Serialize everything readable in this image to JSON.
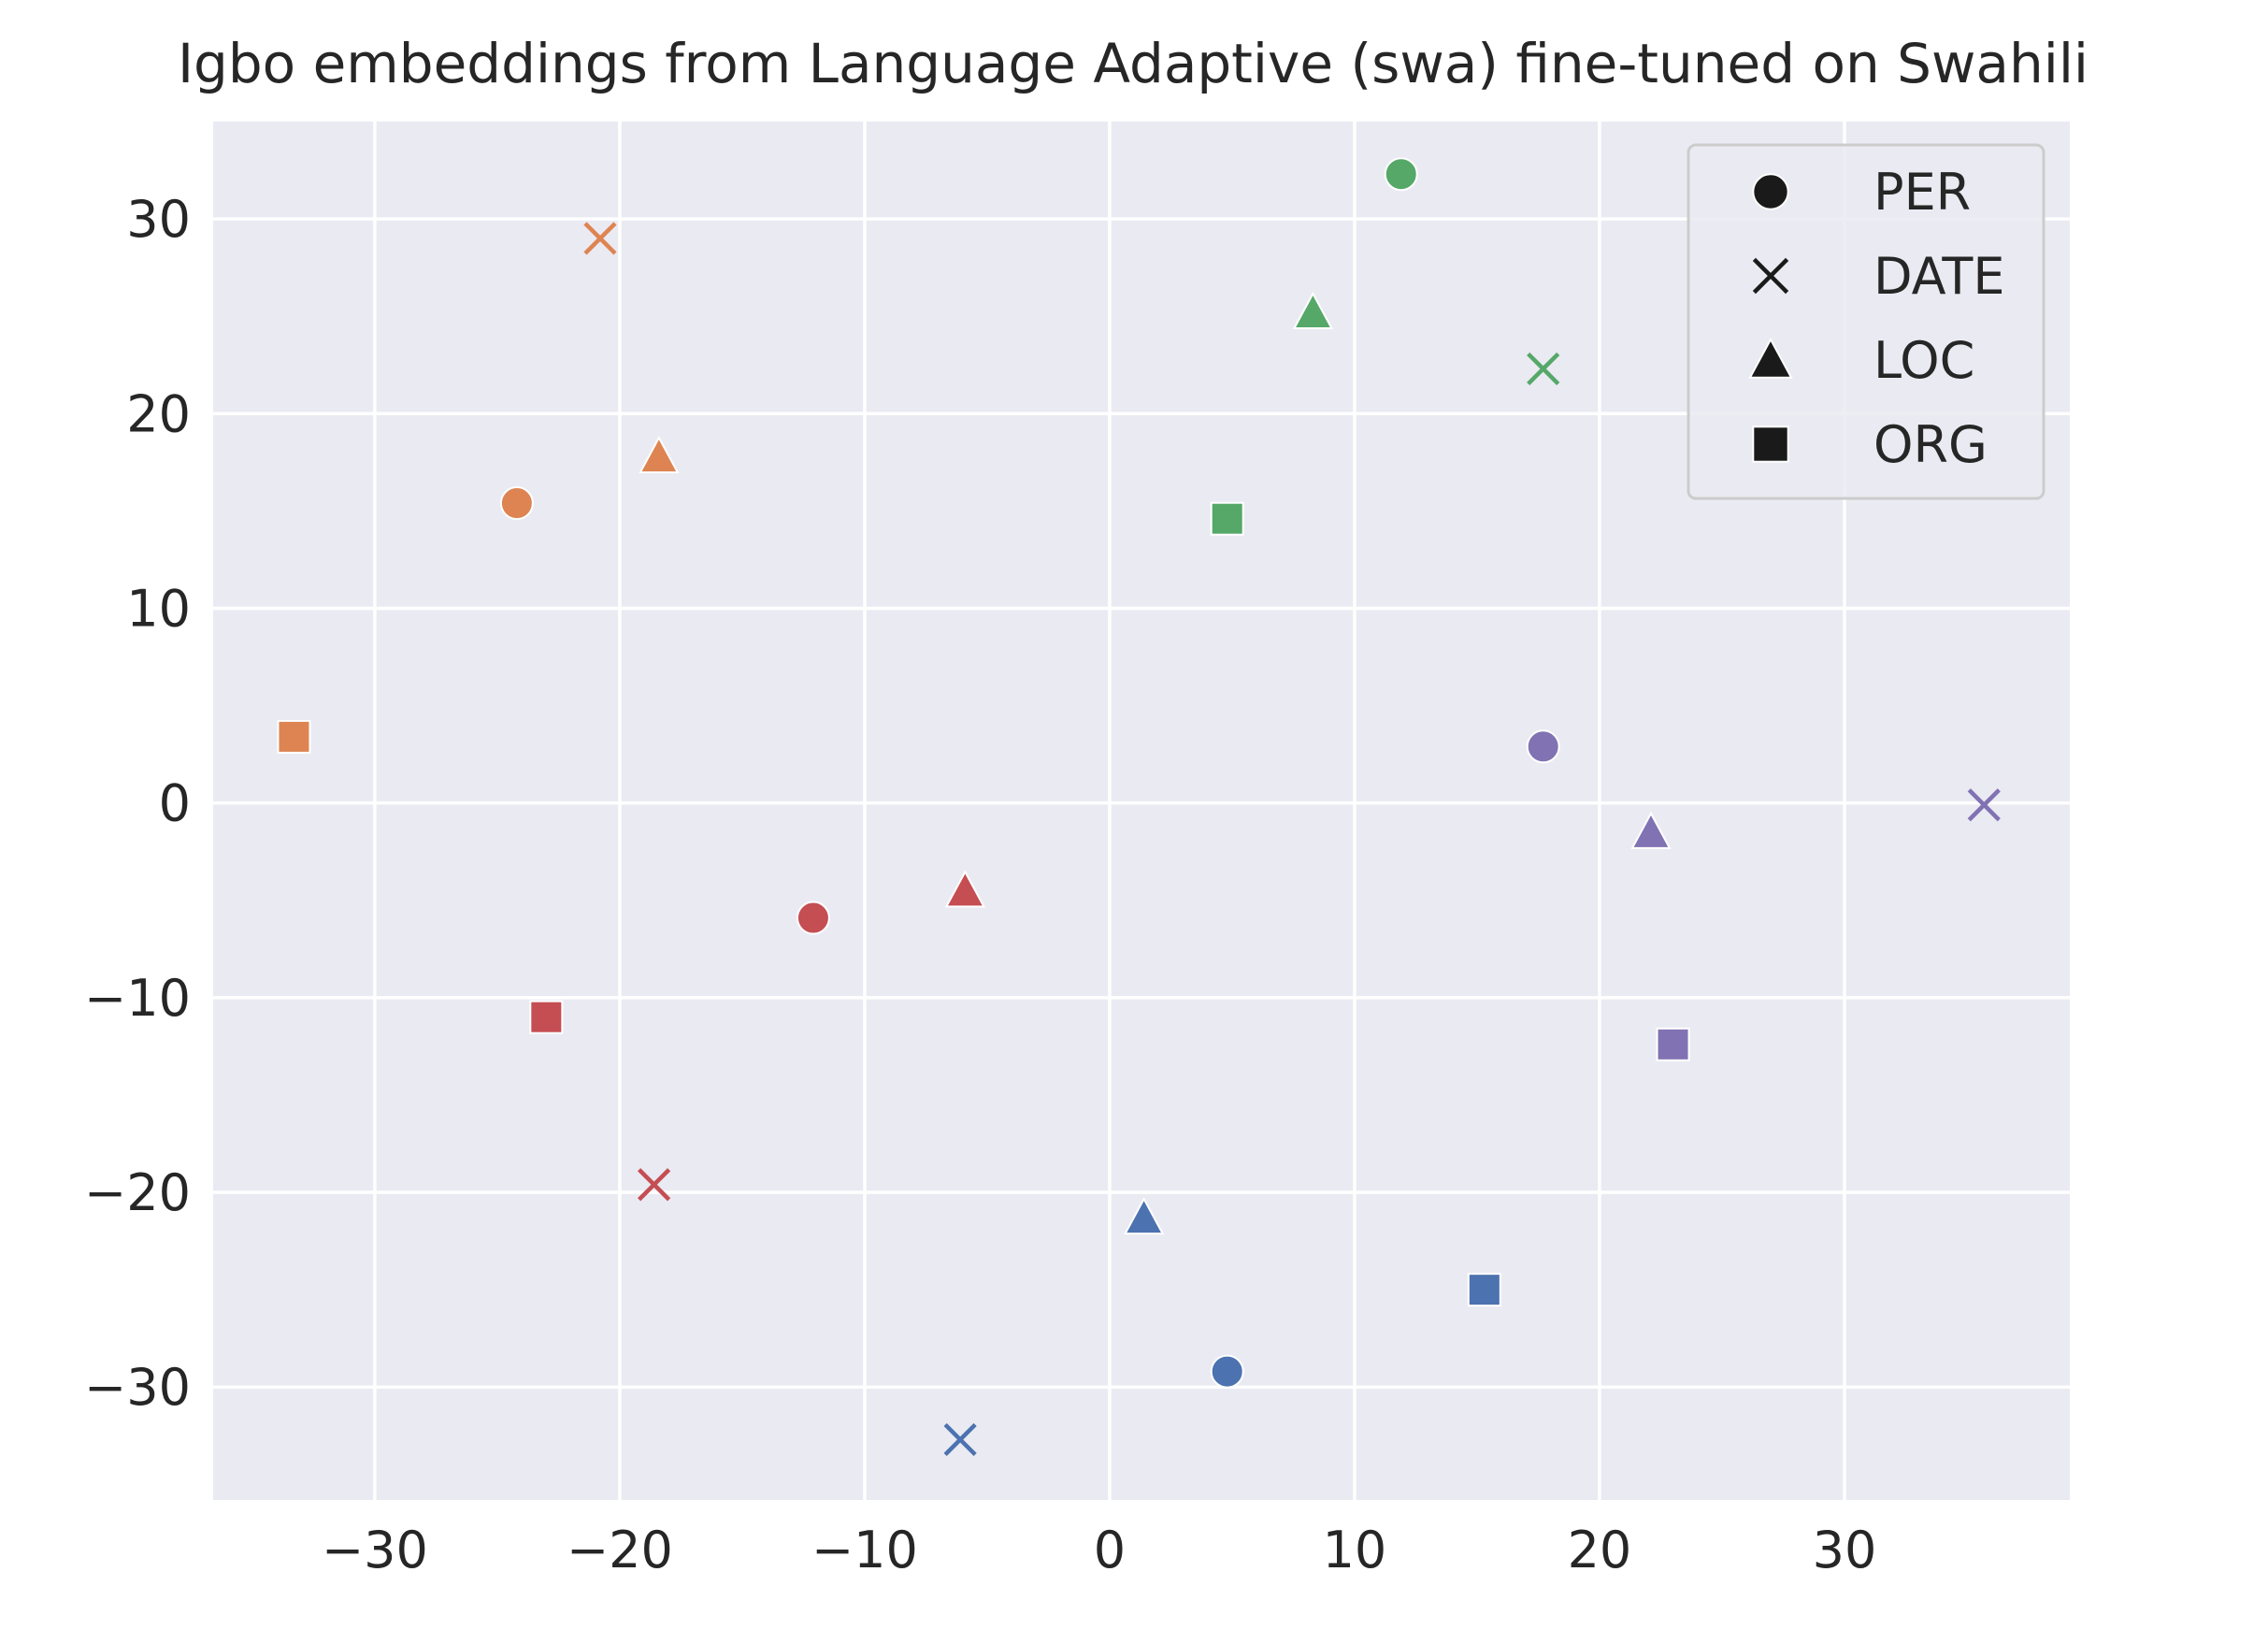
{
  "chart_data": {
    "type": "scatter",
    "title": "Igbo embeddings from Language Adaptive (swa) fine-tuned on Swahili",
    "xlabel": "",
    "ylabel": "",
    "xlim": [
      -36.6,
      39.2
    ],
    "ylim": [
      -35.8,
      35.0
    ],
    "xticks": [
      -30,
      -20,
      -10,
      0,
      10,
      20,
      30
    ],
    "yticks": [
      -30,
      -20,
      -10,
      0,
      10,
      20,
      30
    ],
    "xtick_labels": [
      "−30",
      "−20",
      "−10",
      "0",
      "10",
      "20",
      "30"
    ],
    "ytick_labels": [
      "−30",
      "−20",
      "−10",
      "0",
      "10",
      "20",
      "30"
    ],
    "grid": true,
    "legend_position": "upper right",
    "legend": [
      {
        "label": "PER",
        "marker": "circle"
      },
      {
        "label": "DATE",
        "marker": "x"
      },
      {
        "label": "LOC",
        "marker": "triangle"
      },
      {
        "label": "ORG",
        "marker": "square"
      }
    ],
    "colors": {
      "background": "#eaeaf2",
      "grid": "#ffffff",
      "blue": "#4c72b0",
      "orange": "#dd8452",
      "green": "#55a868",
      "red": "#c44e52",
      "purple": "#8172b3"
    },
    "points": [
      {
        "label": "PER",
        "color": "orange",
        "x": -24.2,
        "y": 15.4
      },
      {
        "label": "DATE",
        "color": "orange",
        "x": -20.8,
        "y": 29.0
      },
      {
        "label": "LOC",
        "color": "orange",
        "x": -18.4,
        "y": 17.8
      },
      {
        "label": "ORG",
        "color": "orange",
        "x": -33.3,
        "y": 3.4
      },
      {
        "label": "PER",
        "color": "green",
        "x": 11.9,
        "y": 32.3
      },
      {
        "label": "DATE",
        "color": "green",
        "x": 17.7,
        "y": 22.3
      },
      {
        "label": "LOC",
        "color": "green",
        "x": 8.3,
        "y": 25.2
      },
      {
        "label": "ORG",
        "color": "green",
        "x": 4.8,
        "y": 14.6
      },
      {
        "label": "PER",
        "color": "red",
        "x": -12.1,
        "y": -5.9
      },
      {
        "label": "DATE",
        "color": "red",
        "x": -18.6,
        "y": -19.6
      },
      {
        "label": "LOC",
        "color": "red",
        "x": -5.9,
        "y": -4.5
      },
      {
        "label": "ORG",
        "color": "red",
        "x": -23.0,
        "y": -11.0
      },
      {
        "label": "PER",
        "color": "purple",
        "x": 17.7,
        "y": 2.9
      },
      {
        "label": "DATE",
        "color": "purple",
        "x": 35.7,
        "y": -0.1
      },
      {
        "label": "LOC",
        "color": "purple",
        "x": 22.1,
        "y": -1.5
      },
      {
        "label": "ORG",
        "color": "purple",
        "x": 23.0,
        "y": -12.4
      },
      {
        "label": "PER",
        "color": "blue",
        "x": 4.8,
        "y": -29.2
      },
      {
        "label": "DATE",
        "color": "blue",
        "x": -6.1,
        "y": -32.7
      },
      {
        "label": "LOC",
        "color": "blue",
        "x": 1.4,
        "y": -21.3
      },
      {
        "label": "ORG",
        "color": "blue",
        "x": 15.3,
        "y": -25.0
      }
    ]
  }
}
